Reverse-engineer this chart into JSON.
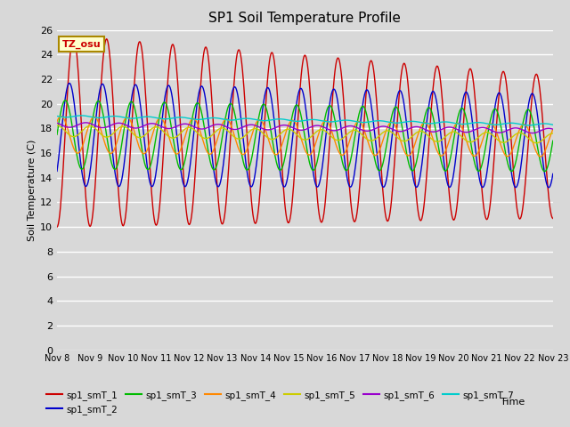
{
  "title": "SP1 Soil Temperature Profile",
  "xlabel": "Time",
  "ylabel": "Soil Temperature (C)",
  "ylim": [
    0,
    26
  ],
  "bg_color": "#d8d8d8",
  "tz_label": "TZ_osu",
  "series_params": [
    {
      "label": "sp1_smT_1",
      "color": "#cc0000",
      "mean_s": 17.8,
      "mean_e": 16.5,
      "amp_s": 7.8,
      "amp_e": 5.8,
      "phase_hrs": 0
    },
    {
      "label": "sp1_smT_2",
      "color": "#0000cc",
      "mean_s": 17.5,
      "mean_e": 17.0,
      "amp_s": 4.2,
      "amp_e": 3.8,
      "phase_hrs": 3
    },
    {
      "label": "sp1_smT_3",
      "color": "#00bb00",
      "mean_s": 17.5,
      "mean_e": 17.0,
      "amp_s": 2.8,
      "amp_e": 2.5,
      "phase_hrs": 6
    },
    {
      "label": "sp1_smT_4",
      "color": "#ff8800",
      "mean_s": 17.5,
      "mean_e": 17.0,
      "amp_s": 1.5,
      "amp_e": 1.3,
      "phase_hrs": 9
    },
    {
      "label": "sp1_smT_5",
      "color": "#cccc00",
      "mean_s": 17.8,
      "mean_e": 17.2,
      "amp_s": 0.45,
      "amp_e": 0.4,
      "phase_hrs": 12
    },
    {
      "label": "sp1_smT_6",
      "color": "#9900cc",
      "mean_s": 18.3,
      "mean_e": 17.8,
      "amp_s": 0.2,
      "amp_e": 0.2,
      "phase_hrs": 15
    },
    {
      "label": "sp1_smT_7",
      "color": "#00cccc",
      "mean_s": 19.0,
      "mean_e": 18.3,
      "amp_s": 0.08,
      "amp_e": 0.08,
      "phase_hrs": 18
    }
  ],
  "tick_labels": [
    "Nov 8",
    "Nov 9",
    "Nov 10",
    "Nov 11",
    "Nov 12",
    "Nov 13",
    "Nov 14",
    "Nov 15",
    "Nov 16",
    "Nov 17",
    "Nov 18",
    "Nov 19",
    "Nov 20",
    "Nov 21",
    "Nov 22",
    "Nov 23"
  ],
  "yticks": [
    0,
    2,
    4,
    6,
    8,
    10,
    12,
    14,
    16,
    18,
    20,
    22,
    24,
    26
  ]
}
